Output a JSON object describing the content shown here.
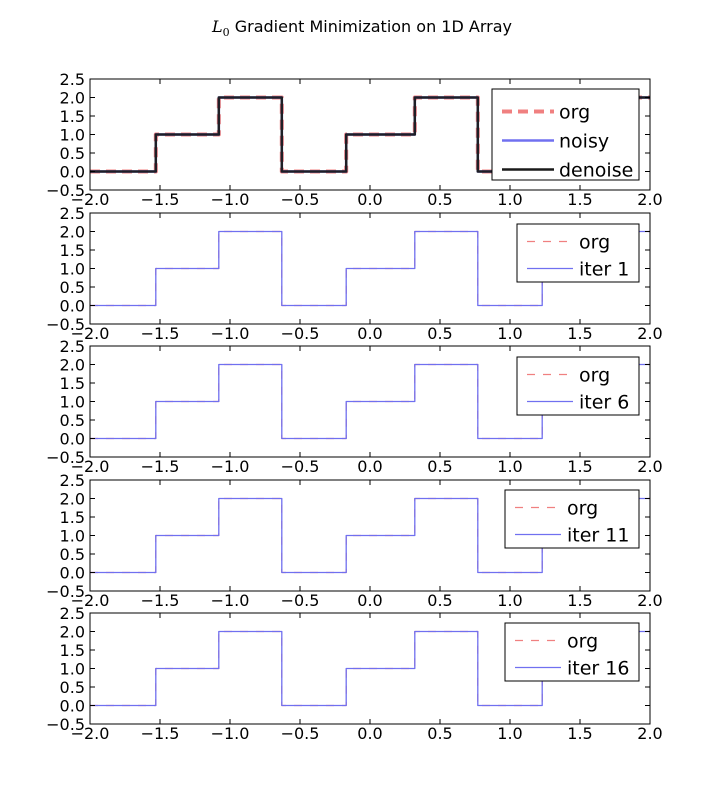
{
  "figure": {
    "title_math": "L",
    "title_subscript": "0",
    "title_text": " Gradient Minimization on 1D Array"
  },
  "colors": {
    "org": "#f08080",
    "noisy": "#7070f0",
    "denoise": "#1a1a1a",
    "iter": "#7070f0"
  },
  "chart_data": [
    {
      "type": "line",
      "xlim": [
        -2.0,
        2.0
      ],
      "ylim": [
        -0.5,
        2.5
      ],
      "xticks": [
        "−2.0",
        "−1.5",
        "−1.0",
        "−0.5",
        "0.0",
        "0.5",
        "1.0",
        "1.5",
        "2.0"
      ],
      "yticks": [
        "−0.5",
        "0.0",
        "0.5",
        "1.0",
        "1.5",
        "2.0",
        "2.5"
      ],
      "x": [
        -2.0,
        -1.53,
        -1.53,
        -1.08,
        -1.08,
        -0.63,
        -0.63,
        -0.17,
        -0.17,
        0.32,
        0.32,
        0.77,
        0.77,
        1.23,
        1.23,
        2.0
      ],
      "legend": "top-right",
      "series": [
        {
          "name": "org",
          "style": "dashed",
          "role": "org",
          "values": [
            0,
            0,
            1,
            1,
            2,
            2,
            0,
            0,
            1,
            1,
            2,
            2,
            0,
            0,
            2,
            2
          ]
        },
        {
          "name": "noisy",
          "style": "solid",
          "role": "noisy",
          "values": [
            0,
            0,
            1,
            1,
            2,
            2,
            0,
            0,
            1,
            1,
            2,
            2,
            0,
            0,
            2,
            2
          ]
        },
        {
          "name": "denoise",
          "style": "solid",
          "role": "denoise",
          "values": [
            0,
            0,
            1,
            1,
            2,
            2,
            0,
            0,
            1,
            1,
            2,
            2,
            0,
            0,
            2,
            2
          ]
        }
      ]
    },
    {
      "type": "line",
      "xlim": [
        -2.0,
        2.0
      ],
      "ylim": [
        -0.5,
        2.5
      ],
      "xticks": [
        "−2.0",
        "−1.5",
        "−1.0",
        "−0.5",
        "0.0",
        "0.5",
        "1.0",
        "1.5",
        "2.0"
      ],
      "yticks": [
        "−0.5",
        "0.0",
        "0.5",
        "1.0",
        "1.5",
        "2.0",
        "2.5"
      ],
      "x": [
        -2.0,
        -1.53,
        -1.53,
        -1.08,
        -1.08,
        -0.63,
        -0.63,
        -0.17,
        -0.17,
        0.32,
        0.32,
        0.77,
        0.77,
        1.23,
        1.23,
        2.0
      ],
      "legend": "top-right",
      "series": [
        {
          "name": "org",
          "style": "dashed",
          "role": "org",
          "values": [
            0,
            0,
            1,
            1,
            2,
            2,
            0,
            0,
            1,
            1,
            2,
            2,
            0,
            0,
            2,
            2
          ]
        },
        {
          "name": "iter 1",
          "style": "solid",
          "role": "iter",
          "values": [
            0,
            0,
            1,
            1,
            2,
            2,
            0,
            0,
            1,
            1,
            2,
            2,
            0,
            0,
            2,
            2
          ]
        }
      ]
    },
    {
      "type": "line",
      "xlim": [
        -2.0,
        2.0
      ],
      "ylim": [
        -0.5,
        2.5
      ],
      "xticks": [
        "−2.0",
        "−1.5",
        "−1.0",
        "−0.5",
        "0.0",
        "0.5",
        "1.0",
        "1.5",
        "2.0"
      ],
      "yticks": [
        "−0.5",
        "0.0",
        "0.5",
        "1.0",
        "1.5",
        "2.0",
        "2.5"
      ],
      "x": [
        -2.0,
        -1.53,
        -1.53,
        -1.08,
        -1.08,
        -0.63,
        -0.63,
        -0.17,
        -0.17,
        0.32,
        0.32,
        0.77,
        0.77,
        1.23,
        1.23,
        2.0
      ],
      "legend": "top-right",
      "series": [
        {
          "name": "org",
          "style": "dashed",
          "role": "org",
          "values": [
            0,
            0,
            1,
            1,
            2,
            2,
            0,
            0,
            1,
            1,
            2,
            2,
            0,
            0,
            2,
            2
          ]
        },
        {
          "name": "iter 6",
          "style": "solid",
          "role": "iter",
          "values": [
            0,
            0,
            1,
            1,
            2,
            2,
            0,
            0,
            1,
            1,
            2,
            2,
            0,
            0,
            2,
            2
          ]
        }
      ]
    },
    {
      "type": "line",
      "xlim": [
        -2.0,
        2.0
      ],
      "ylim": [
        -0.5,
        2.5
      ],
      "xticks": [
        "−2.0",
        "−1.5",
        "−1.0",
        "−0.5",
        "0.0",
        "0.5",
        "1.0",
        "1.5",
        "2.0"
      ],
      "yticks": [
        "−0.5",
        "0.0",
        "0.5",
        "1.0",
        "1.5",
        "2.0",
        "2.5"
      ],
      "x": [
        -2.0,
        -1.53,
        -1.53,
        -1.08,
        -1.08,
        -0.63,
        -0.63,
        -0.17,
        -0.17,
        0.32,
        0.32,
        0.77,
        0.77,
        1.23,
        1.23,
        2.0
      ],
      "legend": "top-right",
      "series": [
        {
          "name": "org",
          "style": "dashed",
          "role": "org",
          "values": [
            0,
            0,
            1,
            1,
            2,
            2,
            0,
            0,
            1,
            1,
            2,
            2,
            0,
            0,
            2,
            2
          ]
        },
        {
          "name": "iter 11",
          "style": "solid",
          "role": "iter",
          "values": [
            0,
            0,
            1,
            1,
            2,
            2,
            0,
            0,
            1,
            1,
            2,
            2,
            0,
            0,
            2,
            2
          ]
        }
      ]
    },
    {
      "type": "line",
      "xlim": [
        -2.0,
        2.0
      ],
      "ylim": [
        -0.5,
        2.5
      ],
      "xticks": [
        "−2.0",
        "−1.5",
        "−1.0",
        "−0.5",
        "0.0",
        "0.5",
        "1.0",
        "1.5",
        "2.0"
      ],
      "yticks": [
        "−0.5",
        "0.0",
        "0.5",
        "1.0",
        "1.5",
        "2.0",
        "2.5"
      ],
      "x": [
        -2.0,
        -1.53,
        -1.53,
        -1.08,
        -1.08,
        -0.63,
        -0.63,
        -0.17,
        -0.17,
        0.32,
        0.32,
        0.77,
        0.77,
        1.23,
        1.23,
        2.0
      ],
      "legend": "top-right",
      "series": [
        {
          "name": "org",
          "style": "dashed",
          "role": "org",
          "values": [
            0,
            0,
            1,
            1,
            2,
            2,
            0,
            0,
            1,
            1,
            2,
            2,
            0,
            0,
            2,
            2
          ]
        },
        {
          "name": "iter 16",
          "style": "solid",
          "role": "iter",
          "values": [
            0,
            0,
            1,
            1,
            2,
            2,
            0,
            0,
            1,
            1,
            2,
            2,
            0,
            0,
            2,
            2
          ]
        }
      ]
    }
  ]
}
